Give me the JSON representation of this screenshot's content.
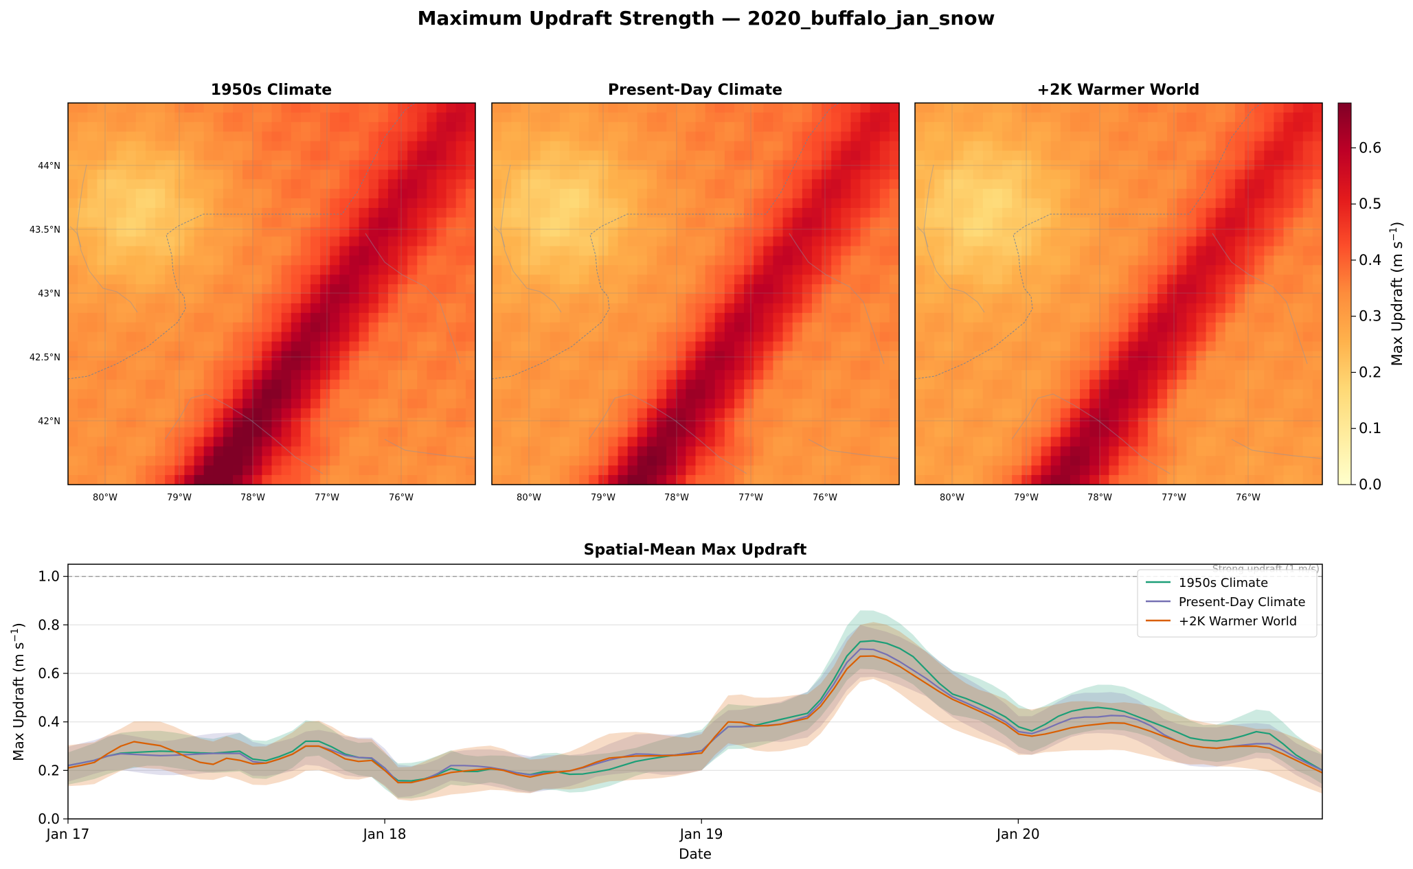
{
  "figure": {
    "title": "Maximum Updraft Strength — 2020_buffalo_jan_snow"
  },
  "colorbar": {
    "label_main": "Max Updraft (m s",
    "label_sup": "−1",
    "label_end": ")",
    "ticks": [
      "0.0",
      "0.1",
      "0.2",
      "0.3",
      "0.4",
      "0.5",
      "0.6"
    ]
  },
  "maps": {
    "lon_ticks": [
      "80°W",
      "79°W",
      "78°W",
      "77°W",
      "76°W"
    ],
    "lat_ticks": [
      "44°N",
      "43.5°N",
      "43°N",
      "42.5°N",
      "42°N"
    ],
    "panels": [
      {
        "title": "1950s Climate",
        "intensity": 1.0
      },
      {
        "title": "Present-Day Climate",
        "intensity": 0.95
      },
      {
        "title": "+2K Warmer World",
        "intensity": 0.91
      }
    ]
  },
  "chart_data": [
    {
      "type": "heatmap",
      "title": "1950s Climate",
      "colormap": "YlOrRd",
      "vmin": 0.0,
      "vmax": 0.68,
      "x_ticks": [
        "80°W",
        "79°W",
        "78°W",
        "77°W",
        "76°W"
      ],
      "y_ticks": [
        "44°N",
        "43.5°N",
        "43°N",
        "42.5°N",
        "42°N"
      ],
      "value_range": [
        0.2,
        0.67
      ]
    },
    {
      "type": "heatmap",
      "title": "Present-Day Climate",
      "colormap": "YlOrRd",
      "vmin": 0.0,
      "vmax": 0.68,
      "value_range": [
        0.2,
        0.63
      ]
    },
    {
      "type": "heatmap",
      "title": "+2K Warmer World",
      "colormap": "YlOrRd",
      "vmin": 0.0,
      "vmax": 0.68,
      "value_range": [
        0.2,
        0.61
      ]
    },
    {
      "type": "line",
      "title": "Spatial-Mean Max Updraft",
      "xlabel": "Date",
      "ylabel_main": "Max Updraft (m s",
      "ylabel_sup": "−1",
      "ylabel_end": ")",
      "ylim": [
        0.0,
        1.05
      ],
      "y_ticks": [
        "0.0",
        "0.2",
        "0.4",
        "0.6",
        "0.8",
        "1.0"
      ],
      "x_range_days": [
        0,
        3.96
      ],
      "x_ticks": [
        {
          "day": 0,
          "label": "Jan 17"
        },
        {
          "day": 1,
          "label": "Jan 18"
        },
        {
          "day": 2,
          "label": "Jan 19"
        },
        {
          "day": 3,
          "label": "Jan 20"
        }
      ],
      "threshold": {
        "value": 1.0,
        "label": "Strong updraft (1 m/s)"
      },
      "legend_position": "top-right",
      "grid": "horizontal",
      "series": [
        {
          "name": "1950s Climate",
          "color": "#1b9e77",
          "keypoints": [
            [
              0,
              0.22
            ],
            [
              0.08,
              0.24
            ],
            [
              0.15,
              0.27
            ],
            [
              0.3,
              0.28
            ],
            [
              0.45,
              0.27
            ],
            [
              0.55,
              0.28
            ],
            [
              0.6,
              0.23
            ],
            [
              0.7,
              0.27
            ],
            [
              0.75,
              0.32
            ],
            [
              0.8,
              0.32
            ],
            [
              0.9,
              0.25
            ],
            [
              0.95,
              0.26
            ],
            [
              1.0,
              0.2
            ],
            [
              1.05,
              0.15
            ],
            [
              1.15,
              0.17
            ],
            [
              1.2,
              0.21
            ],
            [
              1.27,
              0.19
            ],
            [
              1.35,
              0.21
            ],
            [
              1.45,
              0.18
            ],
            [
              1.52,
              0.2
            ],
            [
              1.6,
              0.18
            ],
            [
              1.7,
              0.2
            ],
            [
              1.8,
              0.24
            ],
            [
              1.9,
              0.26
            ],
            [
              2.0,
              0.28
            ],
            [
              2.08,
              0.38
            ],
            [
              2.15,
              0.38
            ],
            [
              2.25,
              0.41
            ],
            [
              2.35,
              0.44
            ],
            [
              2.42,
              0.58
            ],
            [
              2.48,
              0.72
            ],
            [
              2.52,
              0.74
            ],
            [
              2.6,
              0.72
            ],
            [
              2.66,
              0.68
            ],
            [
              2.72,
              0.6
            ],
            [
              2.78,
              0.52
            ],
            [
              2.85,
              0.49
            ],
            [
              2.95,
              0.43
            ],
            [
              3.0,
              0.38
            ],
            [
              3.05,
              0.36
            ],
            [
              3.12,
              0.42
            ],
            [
              3.18,
              0.45
            ],
            [
              3.25,
              0.46
            ],
            [
              3.32,
              0.45
            ],
            [
              3.4,
              0.41
            ],
            [
              3.48,
              0.37
            ],
            [
              3.55,
              0.33
            ],
            [
              3.62,
              0.32
            ],
            [
              3.68,
              0.33
            ],
            [
              3.75,
              0.36
            ],
            [
              3.8,
              0.35
            ],
            [
              3.88,
              0.26
            ],
            [
              3.96,
              0.2
            ]
          ],
          "band": 0.05
        },
        {
          "name": "Present-Day Climate",
          "color": "#7570b3",
          "keypoints": [
            [
              0,
              0.22
            ],
            [
              0.08,
              0.24
            ],
            [
              0.15,
              0.27
            ],
            [
              0.3,
              0.26
            ],
            [
              0.45,
              0.27
            ],
            [
              0.55,
              0.27
            ],
            [
              0.6,
              0.22
            ],
            [
              0.7,
              0.26
            ],
            [
              0.75,
              0.3
            ],
            [
              0.8,
              0.3
            ],
            [
              0.9,
              0.25
            ],
            [
              0.95,
              0.26
            ],
            [
              1.0,
              0.21
            ],
            [
              1.05,
              0.14
            ],
            [
              1.15,
              0.17
            ],
            [
              1.2,
              0.22
            ],
            [
              1.27,
              0.22
            ],
            [
              1.35,
              0.21
            ],
            [
              1.45,
              0.18
            ],
            [
              1.52,
              0.19
            ],
            [
              1.6,
              0.2
            ],
            [
              1.7,
              0.24
            ],
            [
              1.8,
              0.27
            ],
            [
              1.9,
              0.26
            ],
            [
              2.0,
              0.28
            ],
            [
              2.08,
              0.38
            ],
            [
              2.15,
              0.38
            ],
            [
              2.25,
              0.39
            ],
            [
              2.35,
              0.43
            ],
            [
              2.42,
              0.56
            ],
            [
              2.48,
              0.69
            ],
            [
              2.52,
              0.71
            ],
            [
              2.6,
              0.67
            ],
            [
              2.66,
              0.62
            ],
            [
              2.72,
              0.57
            ],
            [
              2.78,
              0.51
            ],
            [
              2.85,
              0.47
            ],
            [
              2.95,
              0.41
            ],
            [
              3.0,
              0.36
            ],
            [
              3.05,
              0.35
            ],
            [
              3.12,
              0.39
            ],
            [
              3.18,
              0.42
            ],
            [
              3.25,
              0.42
            ],
            [
              3.32,
              0.43
            ],
            [
              3.4,
              0.4
            ],
            [
              3.48,
              0.33
            ],
            [
              3.55,
              0.3
            ],
            [
              3.62,
              0.29
            ],
            [
              3.68,
              0.3
            ],
            [
              3.75,
              0.31
            ],
            [
              3.8,
              0.31
            ],
            [
              3.88,
              0.25
            ],
            [
              3.96,
              0.2
            ]
          ],
          "band": 0.05
        },
        {
          "name": "+2K Warmer World",
          "color": "#d95f02",
          "keypoints": [
            [
              0,
              0.21
            ],
            [
              0.08,
              0.23
            ],
            [
              0.15,
              0.29
            ],
            [
              0.2,
              0.32
            ],
            [
              0.3,
              0.3
            ],
            [
              0.4,
              0.24
            ],
            [
              0.45,
              0.22
            ],
            [
              0.5,
              0.25
            ],
            [
              0.55,
              0.24
            ],
            [
              0.6,
              0.22
            ],
            [
              0.7,
              0.26
            ],
            [
              0.75,
              0.3
            ],
            [
              0.8,
              0.3
            ],
            [
              0.9,
              0.23
            ],
            [
              0.95,
              0.25
            ],
            [
              1.0,
              0.2
            ],
            [
              1.05,
              0.14
            ],
            [
              1.15,
              0.17
            ],
            [
              1.2,
              0.19
            ],
            [
              1.27,
              0.2
            ],
            [
              1.35,
              0.21
            ],
            [
              1.45,
              0.17
            ],
            [
              1.52,
              0.19
            ],
            [
              1.6,
              0.2
            ],
            [
              1.7,
              0.25
            ],
            [
              1.8,
              0.26
            ],
            [
              1.9,
              0.26
            ],
            [
              2.0,
              0.27
            ],
            [
              2.08,
              0.4
            ],
            [
              2.12,
              0.4
            ],
            [
              2.18,
              0.38
            ],
            [
              2.25,
              0.39
            ],
            [
              2.35,
              0.42
            ],
            [
              2.42,
              0.54
            ],
            [
              2.48,
              0.66
            ],
            [
              2.52,
              0.68
            ],
            [
              2.6,
              0.65
            ],
            [
              2.66,
              0.6
            ],
            [
              2.72,
              0.55
            ],
            [
              2.78,
              0.5
            ],
            [
              2.85,
              0.46
            ],
            [
              2.95,
              0.4
            ],
            [
              3.0,
              0.35
            ],
            [
              3.05,
              0.34
            ],
            [
              3.12,
              0.36
            ],
            [
              3.18,
              0.38
            ],
            [
              3.25,
              0.39
            ],
            [
              3.32,
              0.4
            ],
            [
              3.4,
              0.37
            ],
            [
              3.48,
              0.33
            ],
            [
              3.55,
              0.3
            ],
            [
              3.62,
              0.29
            ],
            [
              3.68,
              0.3
            ],
            [
              3.75,
              0.3
            ],
            [
              3.8,
              0.29
            ],
            [
              3.88,
              0.24
            ],
            [
              3.96,
              0.19
            ]
          ],
          "band": 0.06
        }
      ]
    }
  ]
}
